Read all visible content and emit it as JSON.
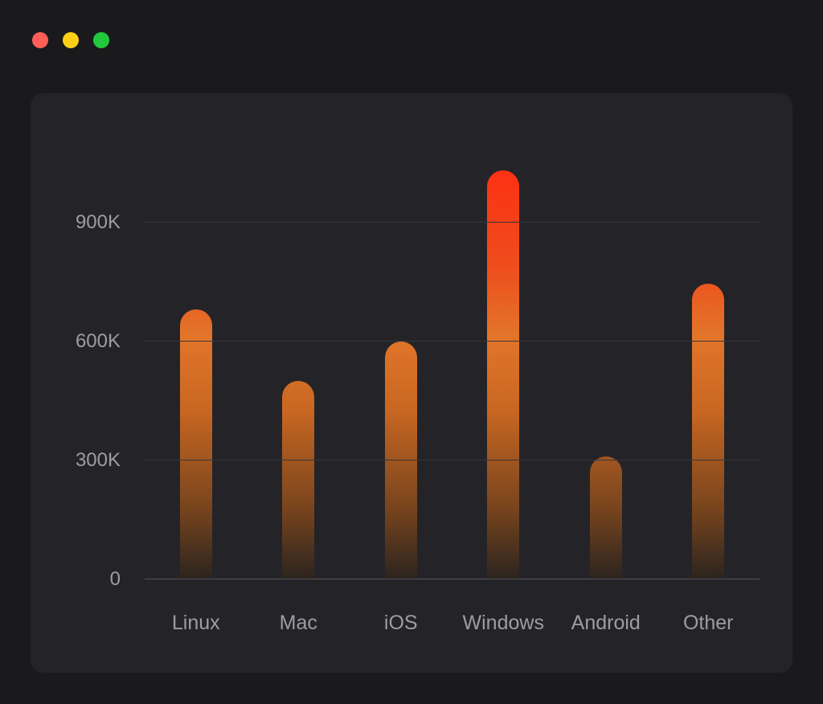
{
  "window": {
    "controls": [
      {
        "name": "close",
        "color": "#ff5f57"
      },
      {
        "name": "minimize",
        "color": "#fdd017"
      },
      {
        "name": "zoom",
        "color": "#22c93f"
      }
    ]
  },
  "chart_data": {
    "type": "bar",
    "title": "",
    "xlabel": "",
    "ylabel": "",
    "categories": [
      "Linux",
      "Mac",
      "iOS",
      "Windows",
      "Android",
      "Other"
    ],
    "values": [
      680000,
      500000,
      600000,
      1030000,
      310000,
      745000
    ],
    "ylim": [
      0,
      1225000
    ],
    "yticks": [
      {
        "value": 0,
        "label": "0"
      },
      {
        "value": 300000,
        "label": "300K"
      },
      {
        "value": 600000,
        "label": "600K"
      },
      {
        "value": 900000,
        "label": "900K"
      }
    ],
    "grid": true,
    "legend": false,
    "bar_gradient": [
      {
        "color": "#2b241e",
        "pos": 0
      },
      {
        "color": "#7a451d",
        "pos": 15
      },
      {
        "color": "#c96722",
        "pos": 35
      },
      {
        "color": "#e2752a",
        "pos": 50
      },
      {
        "color": "#ee4e1d",
        "pos": 64
      },
      {
        "color": "#fa3414",
        "pos": 82
      },
      {
        "color": "#ff2511",
        "pos": 100
      }
    ],
    "colors": {
      "page_bg": "#1a1a1c",
      "panel_bg": "#242428",
      "grid_line": "#37373b",
      "axis_line": "#55555b",
      "tick_text": "#9c9ca3"
    }
  }
}
